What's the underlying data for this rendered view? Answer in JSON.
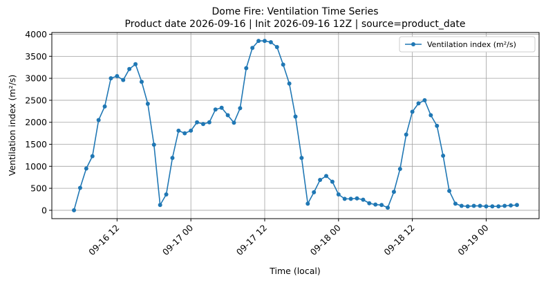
{
  "chart_data": {
    "type": "line",
    "title": "Dome Fire: Ventilation Time Series",
    "subtitle": "Product date 2026-09-16 | Init 2026-09-16 12Z | source=product_date",
    "x_label": "Time (local)",
    "y_label": "Ventilation index (m²/s)",
    "x": [
      "09-16 05",
      "09-16 06",
      "09-16 07",
      "09-16 08",
      "09-16 09",
      "09-16 10",
      "09-16 11",
      "09-16 12",
      "09-16 13",
      "09-16 14",
      "09-16 15",
      "09-16 16",
      "09-16 17",
      "09-16 18",
      "09-16 19",
      "09-16 20",
      "09-16 21",
      "09-16 22",
      "09-16 23",
      "09-17 00",
      "09-17 01",
      "09-17 02",
      "09-17 03",
      "09-17 04",
      "09-17 05",
      "09-17 06",
      "09-17 07",
      "09-17 08",
      "09-17 09",
      "09-17 10",
      "09-17 11",
      "09-17 12",
      "09-17 13",
      "09-17 14",
      "09-17 15",
      "09-17 16",
      "09-17 17",
      "09-17 18",
      "09-17 19",
      "09-17 20",
      "09-17 21",
      "09-17 22",
      "09-17 23",
      "09-18 00",
      "09-18 01",
      "09-18 02",
      "09-18 03",
      "09-18 04",
      "09-18 05",
      "09-18 06",
      "09-18 07",
      "09-18 08",
      "09-18 09",
      "09-18 10",
      "09-18 11",
      "09-18 12",
      "09-18 13",
      "09-18 14",
      "09-18 15",
      "09-18 16",
      "09-18 17",
      "09-18 18",
      "09-18 19",
      "09-18 20",
      "09-18 21",
      "09-18 22",
      "09-18 23",
      "09-19 00",
      "09-19 01",
      "09-19 02",
      "09-19 03",
      "09-19 04",
      "09-19 05"
    ],
    "series": [
      {
        "name": "Ventilation index (m²/s)",
        "color": "#1f77b4",
        "values": [
          0,
          510,
          950,
          1230,
          2050,
          2360,
          3000,
          3050,
          2960,
          3210,
          3320,
          2920,
          2420,
          1490,
          120,
          360,
          1190,
          1810,
          1750,
          1810,
          2000,
          1960,
          2000,
          2290,
          2330,
          2160,
          1990,
          2320,
          3230,
          3690,
          3850,
          3850,
          3820,
          3710,
          3310,
          2880,
          2130,
          1190,
          150,
          410,
          690,
          780,
          650,
          360,
          260,
          260,
          270,
          240,
          160,
          130,
          120,
          60,
          420,
          940,
          1720,
          2240,
          2430,
          2500,
          2160,
          1920,
          1240,
          440,
          150,
          100,
          90,
          100,
          100,
          90,
          90,
          90,
          100,
          110,
          120
        ]
      }
    ],
    "xticks": [
      "09-16 12",
      "09-17 00",
      "09-17 12",
      "09-18 00",
      "09-18 12",
      "09-19 00"
    ],
    "ylim": [
      -190,
      4040
    ],
    "yticks": [
      0,
      500,
      1000,
      1500,
      2000,
      2500,
      3000,
      3500,
      4000
    ],
    "grid": true,
    "legend": "upper right"
  }
}
